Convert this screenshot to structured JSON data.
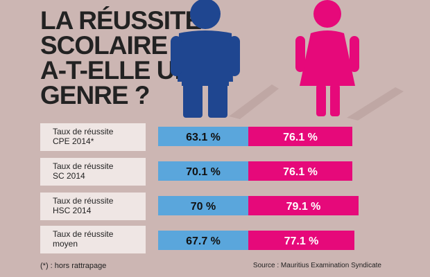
{
  "title_lines": [
    "LA RÉUSSITE",
    "SCOLAIRE",
    "A-T-ELLE UN",
    "GENRE ?"
  ],
  "colors": {
    "boys": "#5aa6dc",
    "girls": "#e6097a",
    "boy_figure": "#1f4690",
    "girl_figure": "#e6097a",
    "label_bg": "#efe6e4"
  },
  "icons": [
    "boy-figure-icon",
    "girl-figure-icon"
  ],
  "chart_data": {
    "type": "bar",
    "orientation": "horizontal-stacked",
    "categories": [
      [
        "Taux de réussite",
        "CPE 2014*"
      ],
      [
        "Taux de réussite",
        "SC 2014"
      ],
      [
        "Taux de réussite",
        "HSC 2014"
      ],
      [
        "Taux de réussite",
        "moyen"
      ]
    ],
    "series": [
      {
        "values": [
          63.1,
          70.1,
          70,
          67.7
        ],
        "labels": [
          "63.1 %",
          "70.1 %",
          "70 %",
          "67.7 %"
        ],
        "color": "#5aa6dc"
      },
      {
        "values": [
          76.1,
          76.1,
          79.1,
          77.1
        ],
        "labels": [
          "76.1 %",
          "76.1 %",
          "79.1 %",
          "77.1 %"
        ],
        "color": "#e6097a"
      }
    ]
  },
  "footnote": "(*) : hors rattrapage",
  "source": "Source : Mauritius Examination Syndicate"
}
